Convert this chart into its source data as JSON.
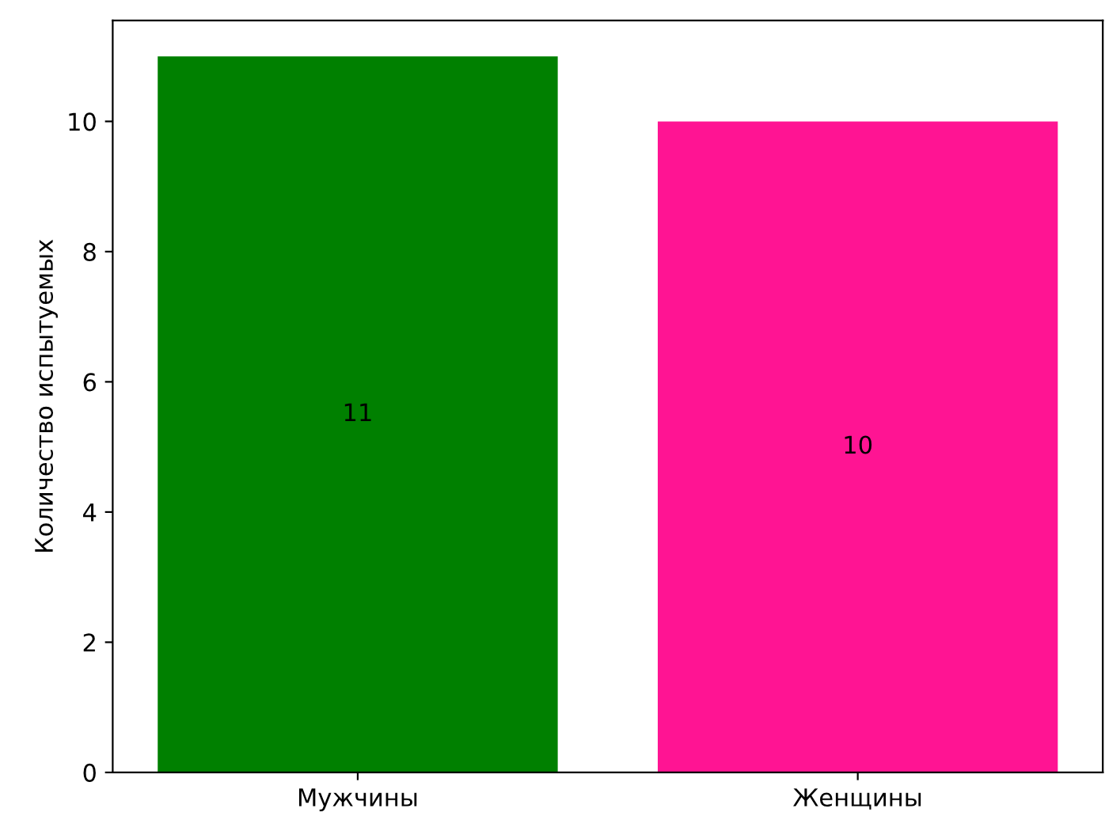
{
  "chart_data": {
    "type": "bar",
    "ylabel": "Количество испытуемых",
    "categories": [
      "Мужчины",
      "Женщины"
    ],
    "values": [
      11,
      10
    ],
    "colors": [
      "#008000",
      "#ff1493"
    ],
    "ylim": [
      0,
      11.55
    ],
    "yticks": [
      0,
      2,
      4,
      6,
      8,
      10
    ],
    "data_labels": true,
    "grid": false
  }
}
